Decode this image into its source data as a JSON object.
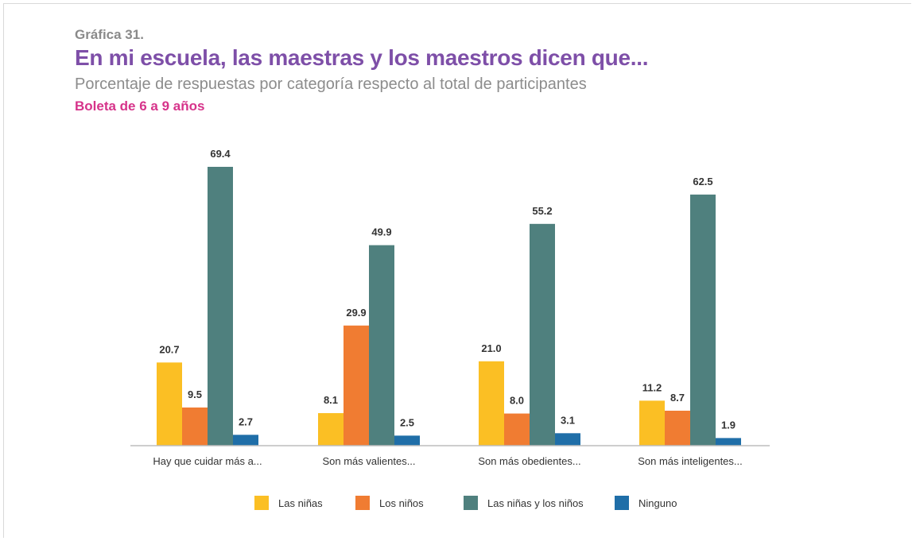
{
  "header": {
    "label": "Gráfica 31.",
    "title": "En mi escuela, las maestras y los maestros dicen que...",
    "subtitle": "Porcentaje de respuestas por categoría respecto al total de participantes",
    "group": "Boleta de 6 a 9 años"
  },
  "colors": {
    "las_ninas": "#fbbf24",
    "los_ninos": "#f07c32",
    "ambos": "#4f807e",
    "ninguno": "#1f6ea8"
  },
  "chart_data": {
    "type": "bar",
    "categories": [
      "Hay que cuidar más a...",
      "Son más valientes...",
      "Son más obedientes...",
      "Son más inteligentes..."
    ],
    "series": [
      {
        "name": "Las niñas",
        "color": "#fbbf24",
        "values": [
          20.7,
          8.1,
          21.0,
          11.2
        ],
        "labels": [
          "20.7",
          "8.1",
          "21.0",
          "11.2"
        ]
      },
      {
        "name": "Los niños",
        "color": "#f07c32",
        "values": [
          9.5,
          29.9,
          8.0,
          8.7
        ],
        "labels": [
          "9.5",
          "29.9",
          "8.0",
          "8.7"
        ]
      },
      {
        "name": "Las niñas y los niños",
        "color": "#4f807e",
        "values": [
          69.4,
          49.9,
          55.2,
          62.5
        ],
        "labels": [
          "69.4",
          "49.9",
          "55.2",
          "62.5"
        ]
      },
      {
        "name": "Ninguno",
        "color": "#1f6ea8",
        "values": [
          2.7,
          2.5,
          3.1,
          1.9
        ],
        "labels": [
          "2.7",
          "2.5",
          "3.1",
          "1.9"
        ]
      }
    ],
    "ylim": [
      0,
      70
    ],
    "grid": false,
    "legend": "bottom"
  }
}
